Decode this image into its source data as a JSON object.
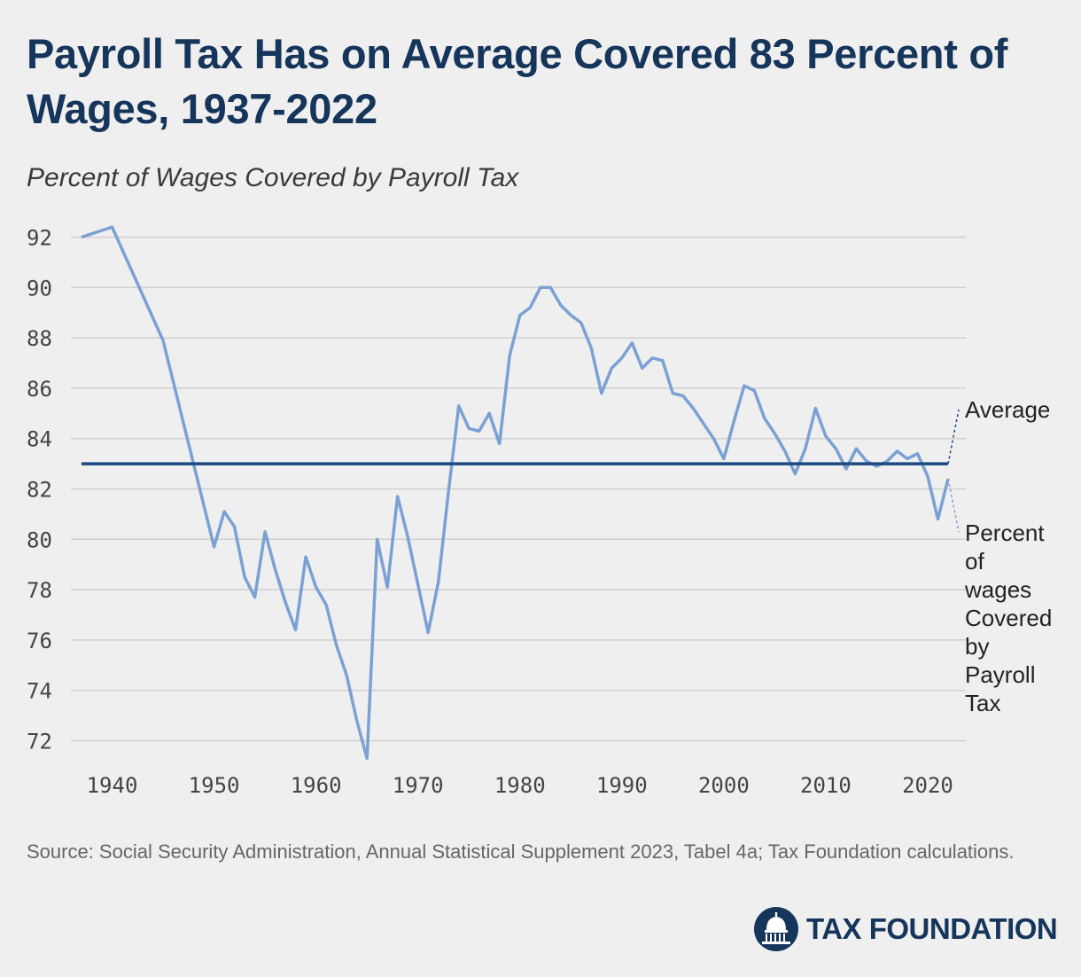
{
  "title": "Payroll Tax Has on Average Covered 83 Percent of Wages, 1937-2022",
  "subtitle": "Percent of Wages Covered by Payroll Tax",
  "source": "Source: Social Security Administration, Annual Statistical Supplement 2023, Tabel 4a; Tax Foundation calculations.",
  "brand": {
    "name": "TAX FOUNDATION",
    "logo_icon": "capitol-dome-icon"
  },
  "colors": {
    "series": "#7ba1d4",
    "average": "#1d4a82",
    "title": "#15355b",
    "grid": "#cfcfcf",
    "background": "#efefef"
  },
  "chart_data": {
    "type": "line",
    "title": "Percent of Wages Covered by Payroll Tax",
    "xlabel": "",
    "ylabel": "",
    "xlim": [
      1936,
      2023
    ],
    "ylim": [
      71,
      93
    ],
    "grid": true,
    "x_ticks": [
      "1940",
      "1950",
      "1960",
      "1970",
      "1980",
      "1990",
      "2000",
      "2010",
      "2020"
    ],
    "y_ticks": [
      "92",
      "90",
      "88",
      "86",
      "84",
      "82",
      "80",
      "78",
      "76",
      "74",
      "72"
    ],
    "series": [
      {
        "name": "Percent of wages Covered by Payroll Tax",
        "x": [
          1937,
          1940,
          1945,
          1950,
          1951,
          1952,
          1953,
          1954,
          1955,
          1956,
          1957,
          1958,
          1959,
          1960,
          1961,
          1962,
          1963,
          1964,
          1965,
          1966,
          1967,
          1968,
          1969,
          1970,
          1971,
          1972,
          1973,
          1974,
          1975,
          1976,
          1977,
          1978,
          1979,
          1980,
          1981,
          1982,
          1983,
          1984,
          1985,
          1986,
          1987,
          1988,
          1989,
          1990,
          1991,
          1992,
          1993,
          1994,
          1995,
          1996,
          1997,
          1998,
          1999,
          2000,
          2001,
          2002,
          2003,
          2004,
          2005,
          2006,
          2007,
          2008,
          2009,
          2010,
          2011,
          2012,
          2013,
          2014,
          2015,
          2016,
          2017,
          2018,
          2019,
          2020,
          2021,
          2022
        ],
        "y": [
          92.0,
          92.4,
          87.9,
          79.7,
          81.1,
          80.5,
          78.5,
          77.7,
          80.3,
          78.8,
          77.5,
          76.4,
          79.3,
          78.1,
          77.4,
          75.8,
          74.6,
          72.8,
          71.3,
          80.0,
          78.1,
          81.7,
          80.1,
          78.2,
          76.3,
          78.3,
          81.9,
          85.3,
          84.4,
          84.3,
          85.0,
          83.8,
          87.3,
          88.9,
          89.2,
          90.0,
          90.0,
          89.3,
          88.9,
          88.6,
          87.6,
          85.8,
          86.8,
          87.2,
          87.8,
          86.8,
          87.2,
          87.1,
          85.8,
          85.7,
          85.2,
          84.6,
          84.0,
          83.2,
          84.7,
          86.1,
          85.9,
          84.8,
          84.2,
          83.5,
          82.6,
          83.6,
          85.2,
          84.1,
          83.6,
          82.8,
          83.6,
          83.1,
          82.9,
          83.1,
          83.5,
          83.2,
          83.4,
          82.5,
          80.8,
          82.4
        ]
      },
      {
        "name": "Average",
        "x": [
          1937,
          2022
        ],
        "y": [
          83,
          83
        ]
      }
    ],
    "labels": {
      "average": "Average",
      "series": [
        "Percent",
        "of",
        "wages",
        "Covered",
        "by",
        "Payroll",
        "Tax"
      ]
    }
  }
}
